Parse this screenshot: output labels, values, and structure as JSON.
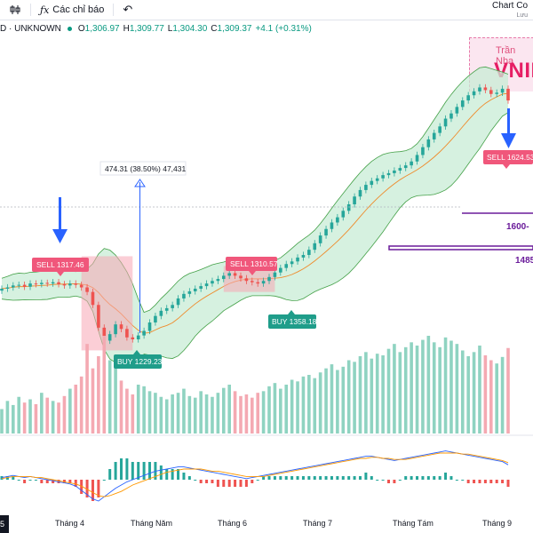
{
  "toolbar": {
    "indicators_label": "Các chỉ báo",
    "chart_title": "Chart Co",
    "chart_subtitle": "Lưu"
  },
  "legend": {
    "symbol": "D · UNKNOWN",
    "open_label": "O",
    "open": "1,306.97",
    "high_label": "H",
    "high": "1,309.77",
    "low_label": "L",
    "low": "1,304.30",
    "close_label": "C",
    "close": "1,309.37",
    "change": "+4.1 (+0.31%)"
  },
  "watermark": {
    "name": "Trần Nha",
    "brand": "VNIN"
  },
  "annotations": {
    "sell1": "SELL 1317.46",
    "buy1": "BUY 1229.23",
    "sell2": "SELL 1310.57",
    "buy2": "BUY 1358.18",
    "sell3": "SELL 1624.53",
    "measure": "474.31 (38.50%) 47,431",
    "level1": "1600-",
    "level2": "1485"
  },
  "xaxis": {
    "corner": "5",
    "labels": [
      "Tháng 4",
      "Tháng Năm",
      "Tháng 6",
      "Tháng 7",
      "Tháng Tám",
      "Tháng 9"
    ]
  },
  "chart_data": {
    "type": "candlestick",
    "title": "",
    "price_series": [
      1310,
      1312,
      1315,
      1316,
      1313,
      1318,
      1317,
      1319,
      1318,
      1320,
      1317,
      1315,
      1318,
      1316,
      1312,
      1305,
      1285,
      1250,
      1230,
      1240,
      1255,
      1248,
      1235,
      1232,
      1238,
      1245,
      1258,
      1268,
      1276,
      1280,
      1285,
      1295,
      1302,
      1306,
      1310,
      1314,
      1318,
      1322,
      1325,
      1330,
      1334,
      1330,
      1326,
      1322,
      1320,
      1318,
      1322,
      1328,
      1335,
      1342,
      1348,
      1352,
      1358,
      1362,
      1370,
      1380,
      1392,
      1402,
      1412,
      1420,
      1430,
      1440,
      1452,
      1462,
      1470,
      1476,
      1480,
      1485,
      1488,
      1492,
      1496,
      1500,
      1506,
      1516,
      1528,
      1540,
      1550,
      1560,
      1572,
      1580,
      1590,
      1600,
      1608,
      1614,
      1620,
      1616,
      1610,
      1612,
      1618,
      1600
    ],
    "ylim": [
      1180,
      1700
    ],
    "signals": [
      {
        "type": "SELL",
        "price": 1317.46
      },
      {
        "type": "BUY",
        "price": 1229.23
      },
      {
        "type": "SELL",
        "price": 1310.57
      },
      {
        "type": "BUY",
        "price": 1358.18
      },
      {
        "type": "SELL",
        "price": 1624.53
      }
    ],
    "volume": [
      30,
      40,
      35,
      45,
      38,
      42,
      36,
      50,
      44,
      40,
      38,
      46,
      55,
      60,
      70,
      110,
      80,
      95,
      120,
      90,
      85,
      65,
      55,
      48,
      60,
      58,
      52,
      50,
      45,
      42,
      48,
      50,
      55,
      46,
      44,
      52,
      48,
      45,
      50,
      56,
      60,
      52,
      46,
      48,
      44,
      50,
      52,
      58,
      62,
      55,
      60,
      66,
      64,
      70,
      72,
      68,
      75,
      80,
      85,
      78,
      82,
      90,
      88,
      95,
      100,
      92,
      98,
      96,
      104,
      110,
      100,
      106,
      112,
      108,
      115,
      120,
      112,
      106,
      118,
      114,
      110,
      102,
      95,
      100,
      108,
      96,
      90,
      86,
      94,
      105
    ],
    "macd": [
      2,
      3,
      4,
      3,
      2,
      3,
      2,
      1,
      0,
      -1,
      -2,
      -3,
      -4,
      -6,
      -10,
      -14,
      -18,
      -20,
      -16,
      -12,
      -8,
      -5,
      -2,
      0,
      2,
      4,
      6,
      8,
      9,
      10,
      11,
      12,
      12,
      11,
      10,
      9,
      8,
      7,
      6,
      5,
      4,
      3,
      2,
      1,
      2,
      3,
      4,
      5,
      6,
      7,
      8,
      9,
      10,
      11,
      12,
      13,
      14,
      15,
      16,
      17,
      18,
      19,
      20,
      21,
      22,
      22,
      21,
      20,
      19,
      18,
      19,
      20,
      21,
      22,
      23,
      24,
      25,
      26,
      27,
      26,
      25,
      24,
      23,
      22,
      21,
      20,
      19,
      18,
      17,
      14
    ],
    "macd_signal": [
      1,
      2,
      3,
      3,
      3,
      3,
      2,
      2,
      1,
      0,
      -1,
      -2,
      -3,
      -4,
      -6,
      -9,
      -12,
      -15,
      -16,
      -15,
      -13,
      -11,
      -8,
      -5,
      -3,
      -1,
      1,
      3,
      5,
      7,
      8,
      9,
      10,
      10,
      10,
      10,
      9,
      8,
      8,
      7,
      6,
      5,
      4,
      3,
      3,
      3,
      3,
      4,
      5,
      6,
      7,
      8,
      9,
      10,
      11,
      12,
      13,
      14,
      15,
      16,
      17,
      18,
      19,
      20,
      20,
      21,
      21,
      20,
      20,
      19,
      19,
      19,
      20,
      21,
      22,
      23,
      24,
      25,
      25,
      25,
      25,
      24,
      24,
      23,
      22,
      21,
      20,
      19,
      18,
      16
    ]
  }
}
